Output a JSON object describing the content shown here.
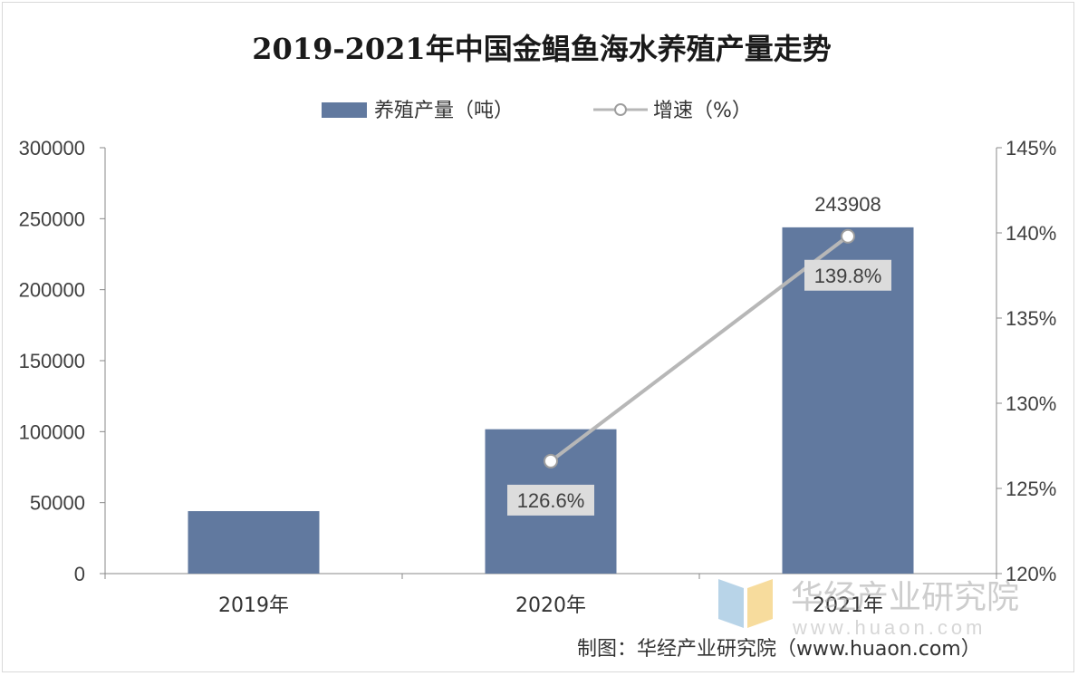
{
  "chart_data": {
    "type": "bar",
    "title": "2019-2021年中国金鲳鱼海水养殖产量走势",
    "categories": [
      "2019年",
      "2020年",
      "2021年"
    ],
    "series": [
      {
        "name": "养殖产量（吨）",
        "kind": "bar",
        "axis": "left",
        "color": "#61799f",
        "values": [
          44000,
          101700,
          243908
        ],
        "data_labels": [
          null,
          null,
          "243908"
        ]
      },
      {
        "name": "增速（%）",
        "kind": "line",
        "axis": "right",
        "color": "#b7b7b7",
        "values": [
          null,
          126.6,
          139.8
        ],
        "data_labels": [
          null,
          "126.6%",
          "139.8%"
        ]
      }
    ],
    "y_left": {
      "min": 0,
      "max": 300000,
      "step": 50000,
      "ticks": [
        "0",
        "50000",
        "100000",
        "150000",
        "200000",
        "250000",
        "300000"
      ]
    },
    "y_right": {
      "min": 120,
      "max": 145,
      "step": 5,
      "ticks": [
        "120%",
        "125%",
        "130%",
        "135%",
        "140%",
        "145%"
      ]
    },
    "legend_position": "top-center",
    "grid": false
  },
  "watermark": {
    "text": "华经产业研究院",
    "url_text": "www.huaon.com"
  },
  "source_note": "制图：华经产业研究院（www.huaon.com）"
}
